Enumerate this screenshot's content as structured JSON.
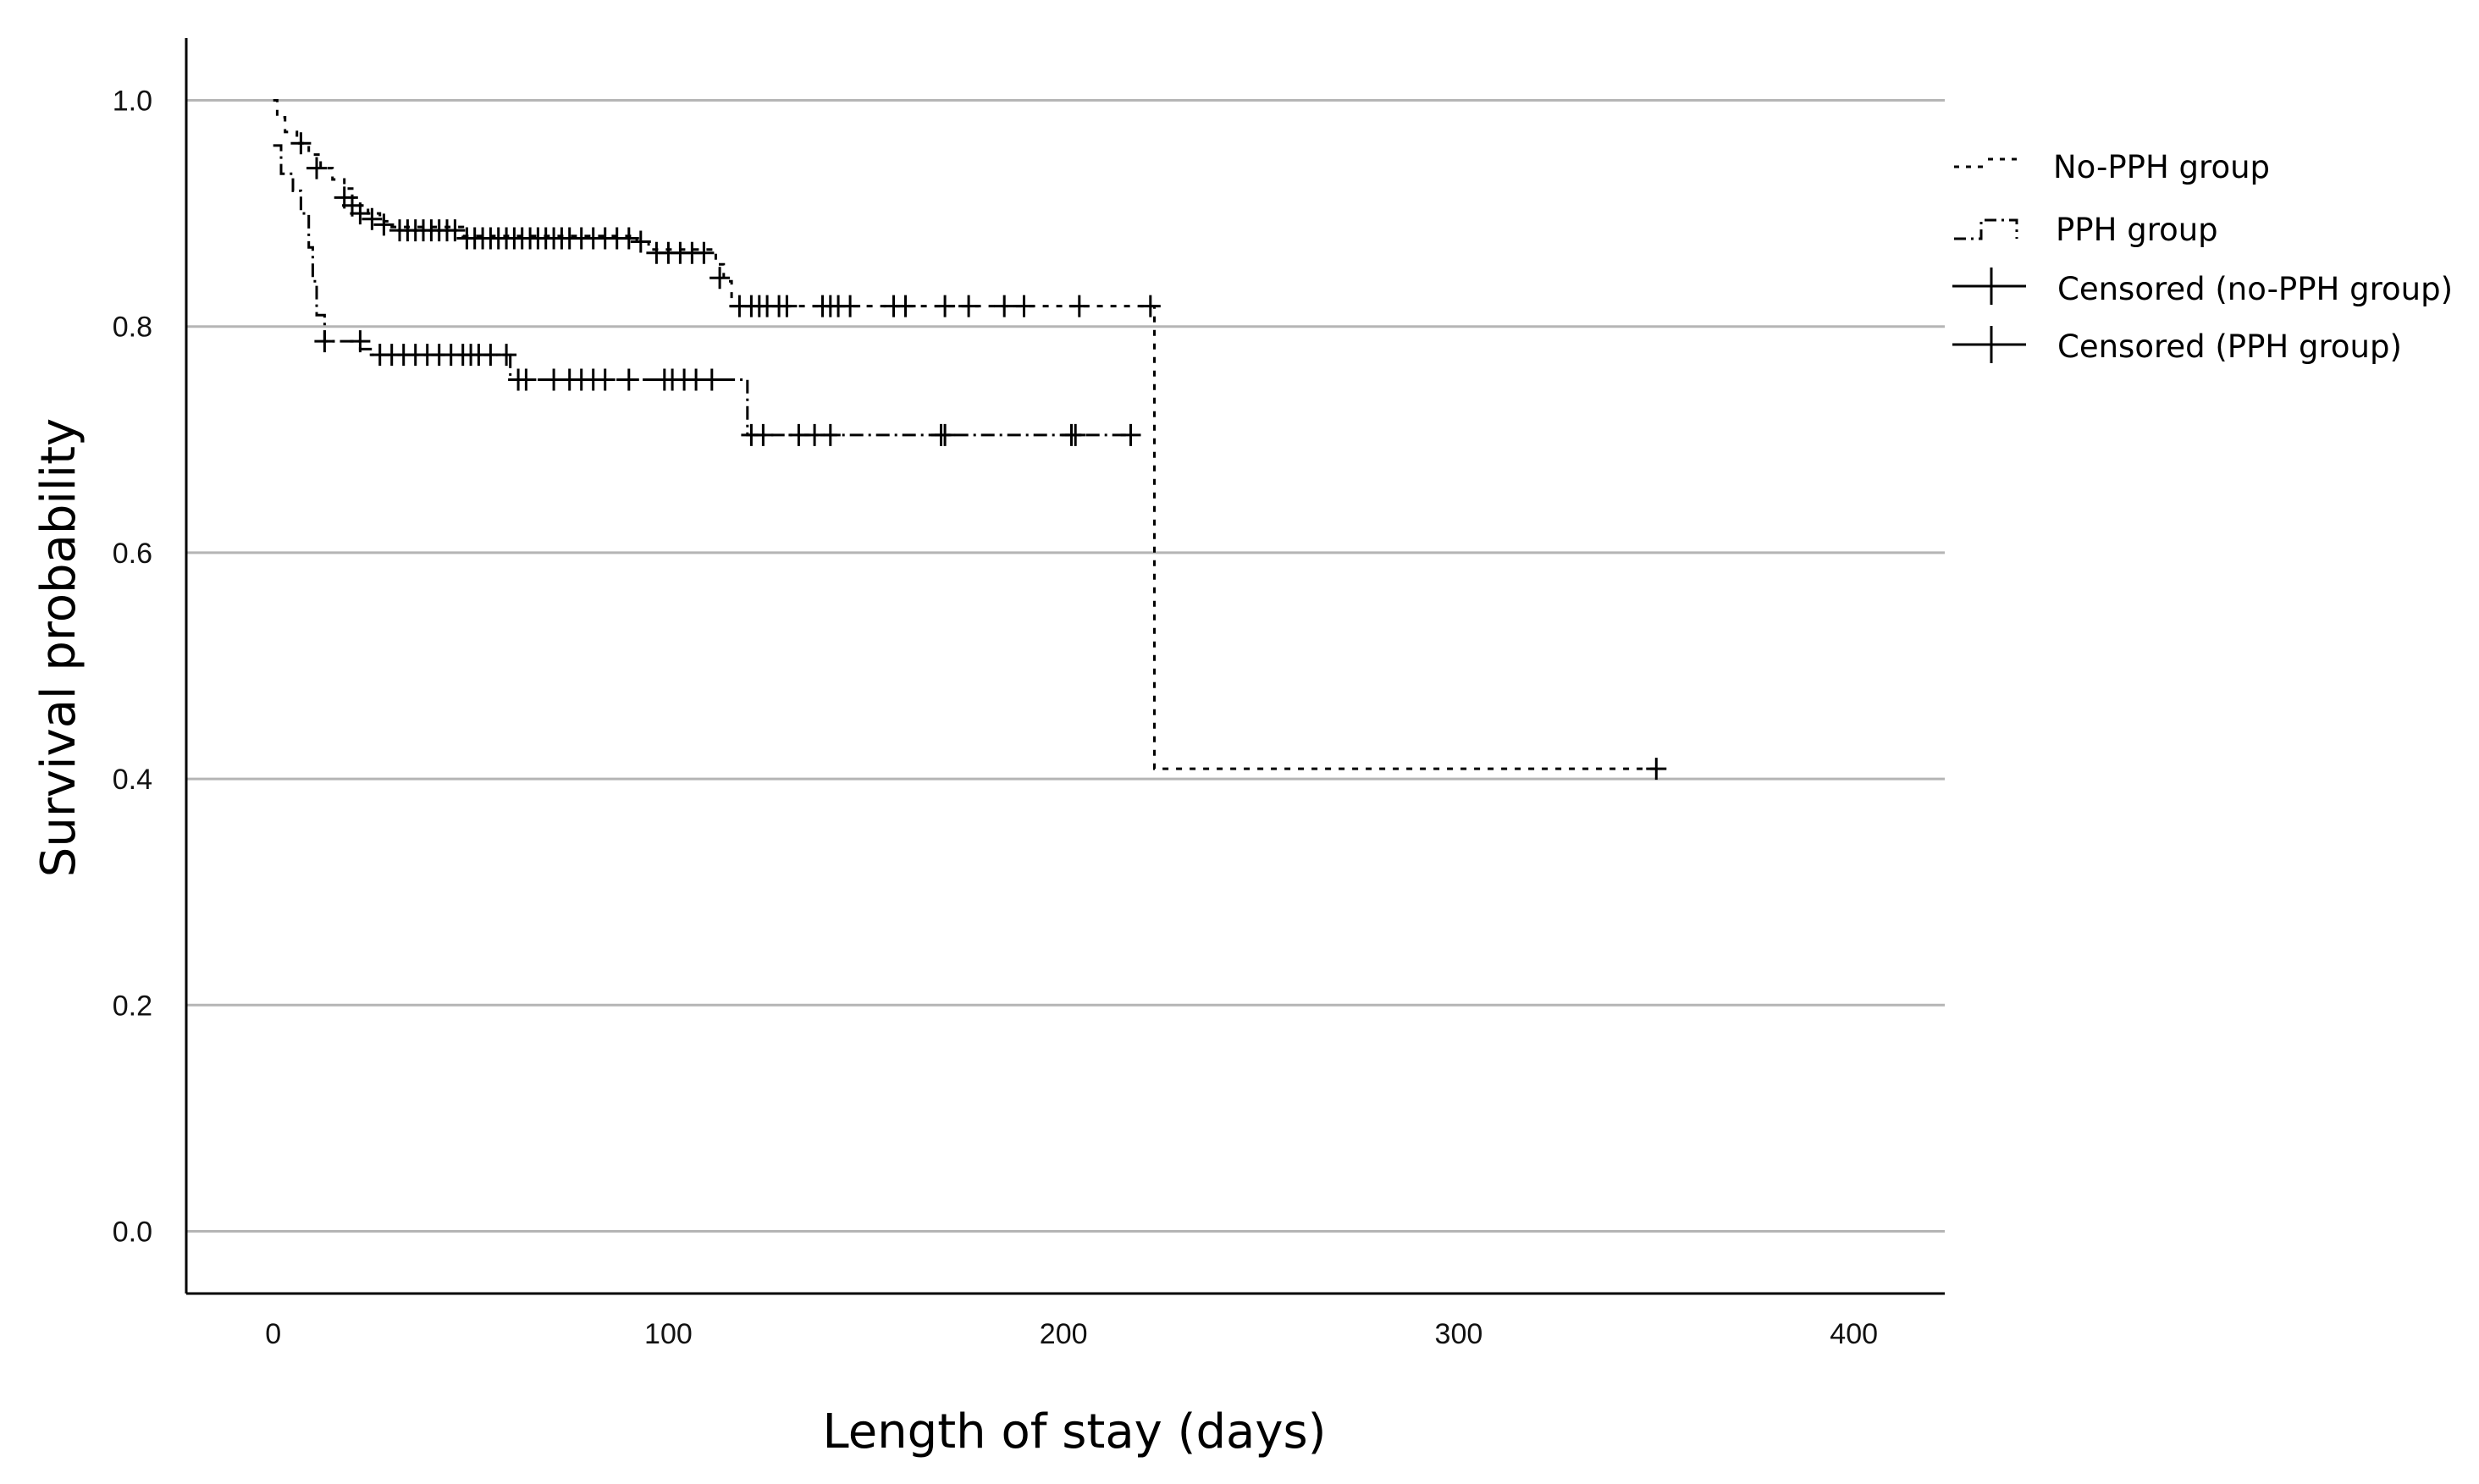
{
  "chart_data": {
    "type": "line",
    "title": "",
    "xlabel": "Length of stay (days)",
    "ylabel": "Survival probability",
    "xlim": [
      -22,
      423
    ],
    "ylim": [
      -0.055,
      1.055
    ],
    "xticks": [
      0,
      100,
      200,
      300,
      400
    ],
    "xtick_labels": [
      "0",
      "100",
      "200",
      "300",
      "400"
    ],
    "yticks": [
      0.0,
      0.2,
      0.4,
      0.6,
      0.8,
      1.0
    ],
    "ytick_labels": [
      "0.0",
      "0.2",
      "0.4",
      "0.6",
      "0.8",
      "1.0"
    ],
    "grid": "horizontal",
    "legend_position": "right",
    "legend": [
      {
        "label": "No-PPH group",
        "style": "dotted"
      },
      {
        "label": "PPH group",
        "style": "dash-dot"
      },
      {
        "label": "Censored (no-PPH group)",
        "style": "cross"
      },
      {
        "label": "Censored (PPH group)",
        "style": "cross"
      }
    ],
    "series": [
      {
        "name": "No-PPH group",
        "dash": "dotted",
        "steps": [
          [
            0,
            1.0
          ],
          [
            1,
            0.985
          ],
          [
            3,
            0.972
          ],
          [
            6,
            0.962
          ],
          [
            9,
            0.952
          ],
          [
            12,
            0.94
          ],
          [
            15,
            0.93
          ],
          [
            18,
            0.922
          ],
          [
            20,
            0.914
          ],
          [
            22,
            0.907
          ],
          [
            24,
            0.9
          ],
          [
            27,
            0.893
          ],
          [
            30,
            0.888
          ],
          [
            48,
            0.88
          ],
          [
            92,
            0.875
          ],
          [
            95,
            0.868
          ],
          [
            112,
            0.855
          ],
          [
            114,
            0.84
          ],
          [
            116,
            0.818
          ],
          [
            223,
            0.409
          ],
          [
            350,
            0.409
          ]
        ],
        "censored": [
          [
            7,
            0.962
          ],
          [
            11,
            0.94
          ],
          [
            18,
            0.914
          ],
          [
            20,
            0.907
          ],
          [
            22,
            0.9
          ],
          [
            25,
            0.895
          ],
          [
            28,
            0.89
          ],
          [
            32,
            0.885
          ],
          [
            34,
            0.885
          ],
          [
            36,
            0.885
          ],
          [
            38,
            0.885
          ],
          [
            40,
            0.885
          ],
          [
            42,
            0.885
          ],
          [
            44,
            0.885
          ],
          [
            46,
            0.885
          ],
          [
            49,
            0.878
          ],
          [
            51,
            0.878
          ],
          [
            53,
            0.878
          ],
          [
            55,
            0.878
          ],
          [
            57,
            0.878
          ],
          [
            59,
            0.878
          ],
          [
            61,
            0.878
          ],
          [
            63,
            0.878
          ],
          [
            65,
            0.878
          ],
          [
            67,
            0.878
          ],
          [
            69,
            0.878
          ],
          [
            71,
            0.878
          ],
          [
            73,
            0.878
          ],
          [
            75,
            0.878
          ],
          [
            78,
            0.878
          ],
          [
            81,
            0.878
          ],
          [
            84,
            0.878
          ],
          [
            87,
            0.878
          ],
          [
            90,
            0.878
          ],
          [
            93,
            0.875
          ],
          [
            97,
            0.865
          ],
          [
            100,
            0.865
          ],
          [
            103,
            0.865
          ],
          [
            106,
            0.865
          ],
          [
            109,
            0.865
          ],
          [
            113,
            0.843
          ],
          [
            118,
            0.818
          ],
          [
            121,
            0.818
          ],
          [
            123,
            0.818
          ],
          [
            125,
            0.818
          ],
          [
            128,
            0.818
          ],
          [
            130,
            0.818
          ],
          [
            139,
            0.818
          ],
          [
            141,
            0.818
          ],
          [
            143,
            0.818
          ],
          [
            146,
            0.818
          ],
          [
            157,
            0.818
          ],
          [
            160,
            0.818
          ],
          [
            170,
            0.818
          ],
          [
            176,
            0.818
          ],
          [
            185,
            0.818
          ],
          [
            190,
            0.818
          ],
          [
            204,
            0.818
          ],
          [
            222,
            0.818
          ],
          [
            350,
            0.409
          ]
        ]
      },
      {
        "name": "PPH group",
        "dash": "dash-dot",
        "steps": [
          [
            0,
            0.96
          ],
          [
            2,
            0.935
          ],
          [
            5,
            0.92
          ],
          [
            7,
            0.9
          ],
          [
            9,
            0.87
          ],
          [
            10,
            0.84
          ],
          [
            11,
            0.81
          ],
          [
            13,
            0.787
          ],
          [
            20,
            0.787
          ],
          [
            22,
            0.78
          ],
          [
            25,
            0.775
          ],
          [
            60,
            0.753
          ],
          [
            120,
            0.704
          ],
          [
            217,
            0.704
          ]
        ],
        "censored": [
          [
            13,
            0.787
          ],
          [
            22,
            0.787
          ],
          [
            27,
            0.775
          ],
          [
            30,
            0.775
          ],
          [
            33,
            0.775
          ],
          [
            36,
            0.775
          ],
          [
            39,
            0.775
          ],
          [
            42,
            0.775
          ],
          [
            45,
            0.775
          ],
          [
            48,
            0.775
          ],
          [
            50,
            0.775
          ],
          [
            52,
            0.775
          ],
          [
            55,
            0.775
          ],
          [
            59,
            0.775
          ],
          [
            62,
            0.753
          ],
          [
            64,
            0.753
          ],
          [
            71,
            0.753
          ],
          [
            75,
            0.753
          ],
          [
            78,
            0.753
          ],
          [
            81,
            0.753
          ],
          [
            84,
            0.753
          ],
          [
            90,
            0.753
          ],
          [
            99,
            0.753
          ],
          [
            101,
            0.753
          ],
          [
            104,
            0.753
          ],
          [
            107,
            0.753
          ],
          [
            111,
            0.753
          ],
          [
            121,
            0.704
          ],
          [
            124,
            0.704
          ],
          [
            133,
            0.704
          ],
          [
            137,
            0.704
          ],
          [
            141,
            0.704
          ],
          [
            169,
            0.704
          ],
          [
            170,
            0.704
          ],
          [
            202,
            0.704
          ],
          [
            203,
            0.704
          ],
          [
            217,
            0.704
          ]
        ]
      }
    ]
  }
}
